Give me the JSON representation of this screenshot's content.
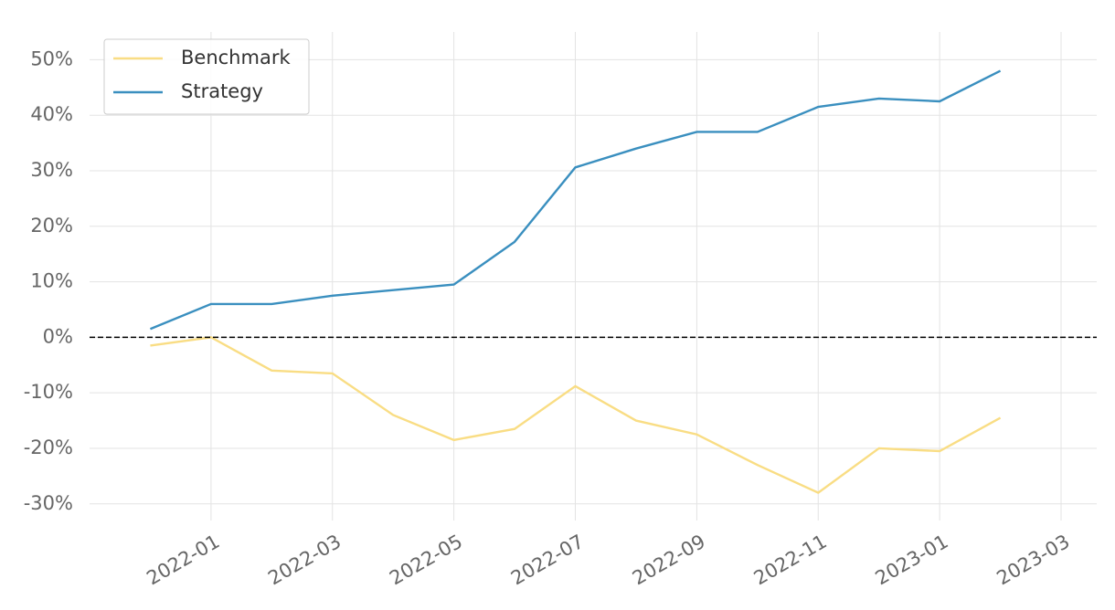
{
  "chart_data": {
    "type": "line",
    "x": [
      "2021-12",
      "2022-01",
      "2022-02",
      "2022-03",
      "2022-04",
      "2022-05",
      "2022-06",
      "2022-07",
      "2022-08",
      "2022-09",
      "2022-10",
      "2022-11",
      "2022-12",
      "2023-01",
      "2023-02"
    ],
    "series": [
      {
        "name": "Benchmark",
        "color": "#f9dd84",
        "values": [
          -1.5,
          0,
          -6,
          -6.5,
          -14,
          -18.5,
          -16.5,
          -8.8,
          -15,
          -17.5,
          -23,
          -28,
          -20,
          -20.5,
          -14.5
        ]
      },
      {
        "name": "Strategy",
        "color": "#3a8fbf",
        "values": [
          1.5,
          6,
          6,
          7.5,
          8.5,
          9.5,
          17.2,
          30.6,
          34,
          37,
          37,
          41.5,
          43,
          42.5,
          48
        ]
      }
    ],
    "xlim": [
      "2021-11",
      "2023-03"
    ],
    "xticks": [
      "2022-01",
      "2022-03",
      "2022-05",
      "2022-07",
      "2022-09",
      "2022-11",
      "2023-01",
      "2023-03"
    ],
    "ylim": [
      -33,
      55
    ],
    "yticks": [
      {
        "value": -30,
        "label": "-30%"
      },
      {
        "value": -20,
        "label": "-20%"
      },
      {
        "value": -10,
        "label": "-10%"
      },
      {
        "value": 0,
        "label": "0%"
      },
      {
        "value": 10,
        "label": "10%"
      },
      {
        "value": 20,
        "label": "20%"
      },
      {
        "value": 30,
        "label": "30%"
      },
      {
        "value": 40,
        "label": "40%"
      },
      {
        "value": 50,
        "label": "50%"
      }
    ],
    "hline": 0,
    "grid": true,
    "legend": "upper-left"
  }
}
